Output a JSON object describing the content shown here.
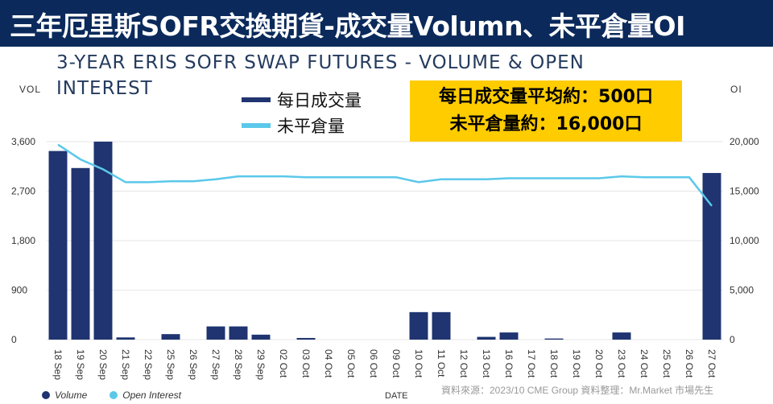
{
  "banner": {
    "title": "三年厄里斯SOFR交換期貨-成交量Volumn、未平倉量OI"
  },
  "chart_title": "3-YEAR ERIS SOFR SWAP FUTURES - VOLUME & OPEN INTEREST",
  "left_axis_label": "VOL",
  "right_axis_label": "OI",
  "legend_top": {
    "volume": "每日成交量",
    "oi": "未平倉量"
  },
  "callout": {
    "line1": "每日成交量平均約：500口",
    "line2": "未平倉量約：16,000口"
  },
  "bottom_legend": {
    "volume": "Volume",
    "oi": "Open Interest"
  },
  "x_title": "DATE",
  "source": "資料來源：2023/10  CME Group    資料整理：Mr.Market 市場先生",
  "colors": {
    "banner": "#0b2a5b",
    "volume": "#1f3470",
    "oi": "#5bc8ea",
    "callout": "#ffcc00"
  },
  "chart_data": {
    "type": "bar",
    "categories": [
      "18 Sep",
      "19 Sep",
      "20 Sep",
      "21 Sep",
      "22 Sep",
      "25 Sep",
      "26 Sep",
      "27 Sep",
      "28 Sep",
      "29 Sep",
      "02 Oct",
      "03 Oct",
      "04 Oct",
      "05 Oct",
      "06 Oct",
      "09 Oct",
      "10 Oct",
      "11 Oct",
      "12 Oct",
      "13 Oct",
      "16 Oct",
      "17 Oct",
      "18 Oct",
      "19 Oct",
      "20 Oct",
      "23 Oct",
      "24 Oct",
      "25 Oct",
      "26 Oct",
      "27 Oct"
    ],
    "series": [
      {
        "name": "Volume",
        "axis": "left",
        "type": "bar",
        "values": [
          3430,
          3120,
          3600,
          40,
          0,
          100,
          0,
          240,
          240,
          90,
          0,
          30,
          0,
          0,
          0,
          0,
          500,
          500,
          0,
          50,
          130,
          0,
          20,
          0,
          0,
          130,
          0,
          0,
          0,
          3030
        ]
      },
      {
        "name": "Open Interest",
        "axis": "right",
        "type": "line",
        "values": [
          19700,
          18200,
          17200,
          15900,
          15900,
          16000,
          16000,
          16200,
          16500,
          16500,
          16500,
          16400,
          16400,
          16400,
          16400,
          16400,
          15900,
          16200,
          16200,
          16200,
          16300,
          16300,
          16300,
          16300,
          16300,
          16500,
          16400,
          16400,
          16400,
          13500
        ]
      }
    ],
    "y_left": {
      "range": [
        0,
        3600
      ],
      "ticks": [
        "0",
        "900",
        "1,800",
        "2,700",
        "3,600"
      ]
    },
    "y_right": {
      "range": [
        0,
        20000
      ],
      "ticks": [
        "0",
        "5,000",
        "10,000",
        "15,000",
        "20,000"
      ]
    }
  }
}
